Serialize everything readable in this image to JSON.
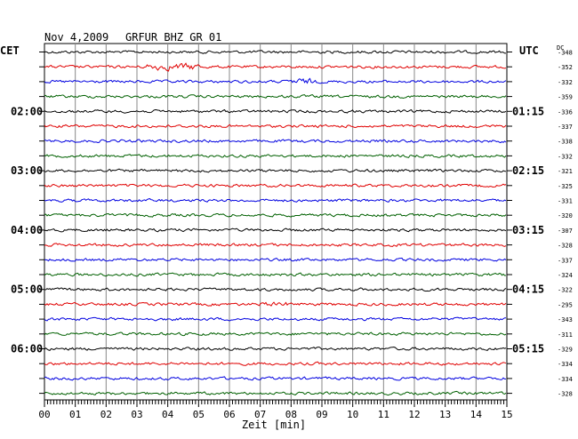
{
  "header": {
    "date": "Nov 4,2009",
    "station": "GRFUR BHZ GR 01",
    "left_tz": "CET",
    "right_tz": "UTC",
    "dc_label": "DC"
  },
  "chart_data": {
    "type": "line",
    "title": "Nov 4,2009   GRFUR BHZ GR 01",
    "xlabel": "Zeit [min]",
    "xlim": [
      0,
      15
    ],
    "x_ticks": [
      "00",
      "01",
      "02",
      "03",
      "04",
      "05",
      "06",
      "07",
      "08",
      "09",
      "10",
      "11",
      "12",
      "13",
      "14",
      "15"
    ],
    "left_hour_labels": [
      {
        "trace": 4,
        "label": "02:00"
      },
      {
        "trace": 8,
        "label": "03:00"
      },
      {
        "trace": 12,
        "label": "04:00"
      },
      {
        "trace": 16,
        "label": "05:00"
      },
      {
        "trace": 20,
        "label": "06:00"
      }
    ],
    "right_hour_labels": [
      {
        "trace": 4,
        "label": "01:15"
      },
      {
        "trace": 8,
        "label": "02:15"
      },
      {
        "trace": 12,
        "label": "03:15"
      },
      {
        "trace": 16,
        "label": "04:15"
      },
      {
        "trace": 20,
        "label": "05:15"
      }
    ],
    "trace_colors": [
      "#000000",
      "#e00000",
      "#0000e0",
      "#006000"
    ],
    "dc_offsets": [
      -348,
      -352,
      -332,
      -359,
      -336,
      -337,
      -338,
      -332,
      -321,
      -325,
      -331,
      -320,
      -307,
      -328,
      -337,
      -324,
      -322,
      -295,
      -343,
      -311,
      -329,
      -334,
      -334,
      -328
    ],
    "grid": true
  }
}
